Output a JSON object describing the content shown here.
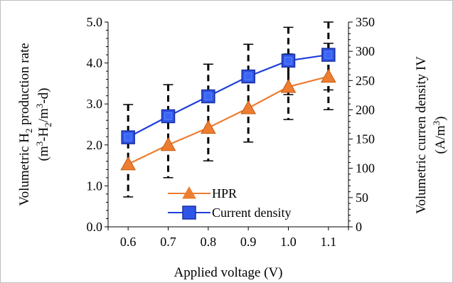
{
  "chart_data": {
    "type": "line",
    "xlabel": "Applied voltage (V)",
    "x": [
      0.6,
      0.7,
      0.8,
      0.9,
      1.0,
      1.1
    ],
    "x_tick_labels": [
      "0.6",
      "0.7",
      "0.8",
      "0.9",
      "1.0",
      "1.1"
    ],
    "y_left": {
      "label_line1_main": "Volumetric H",
      "label_line1_sub": "2",
      "label_line1_rest": " production rate",
      "label_line2_a": "(m",
      "label_line2_sup1": "3",
      "label_line2_b": "-H",
      "label_line2_sub": "2",
      "label_line2_c": "/m",
      "label_line2_sup2": "3",
      "label_line2_d": "-d)",
      "ylim": [
        0,
        5
      ],
      "ticks": [
        0,
        1,
        2,
        3,
        4,
        5
      ],
      "tick_labels": [
        "0.0",
        "1.0",
        "2.0",
        "3.0",
        "4.0",
        "5.0"
      ]
    },
    "y_right": {
      "label_line1": "Volumetric curren density IV",
      "label_line2_a": "(A/m",
      "label_line2_sup": "3",
      "label_line2_b": ")",
      "ylim": [
        0,
        350
      ],
      "ticks": [
        0,
        50,
        100,
        150,
        200,
        250,
        300,
        350
      ],
      "tick_labels": [
        "0",
        "50",
        "100",
        "150",
        "200",
        "250",
        "300",
        "350"
      ]
    },
    "series": [
      {
        "name": "HPR",
        "axis": "left",
        "marker": "triangle",
        "color": "#ED7D31",
        "values": [
          1.53,
          2.0,
          2.42,
          2.9,
          3.42,
          3.67
        ],
        "error_low": [
          0.73,
          1.2,
          1.61,
          2.07,
          2.62,
          2.86
        ],
        "error_high": [
          2.33,
          2.8,
          3.23,
          3.73,
          4.22,
          4.48
        ]
      },
      {
        "name": "Current density",
        "axis": "right",
        "marker": "square",
        "color": "#1F3FDB",
        "values": [
          153,
          189,
          223,
          257,
          284,
          294
        ],
        "error_low": [
          153,
          189,
          223,
          257,
          226,
          234
        ],
        "error_high": [
          209,
          243,
          278,
          312,
          341,
          350
        ]
      }
    ],
    "legend_position": "bottom-center",
    "grid": false
  }
}
